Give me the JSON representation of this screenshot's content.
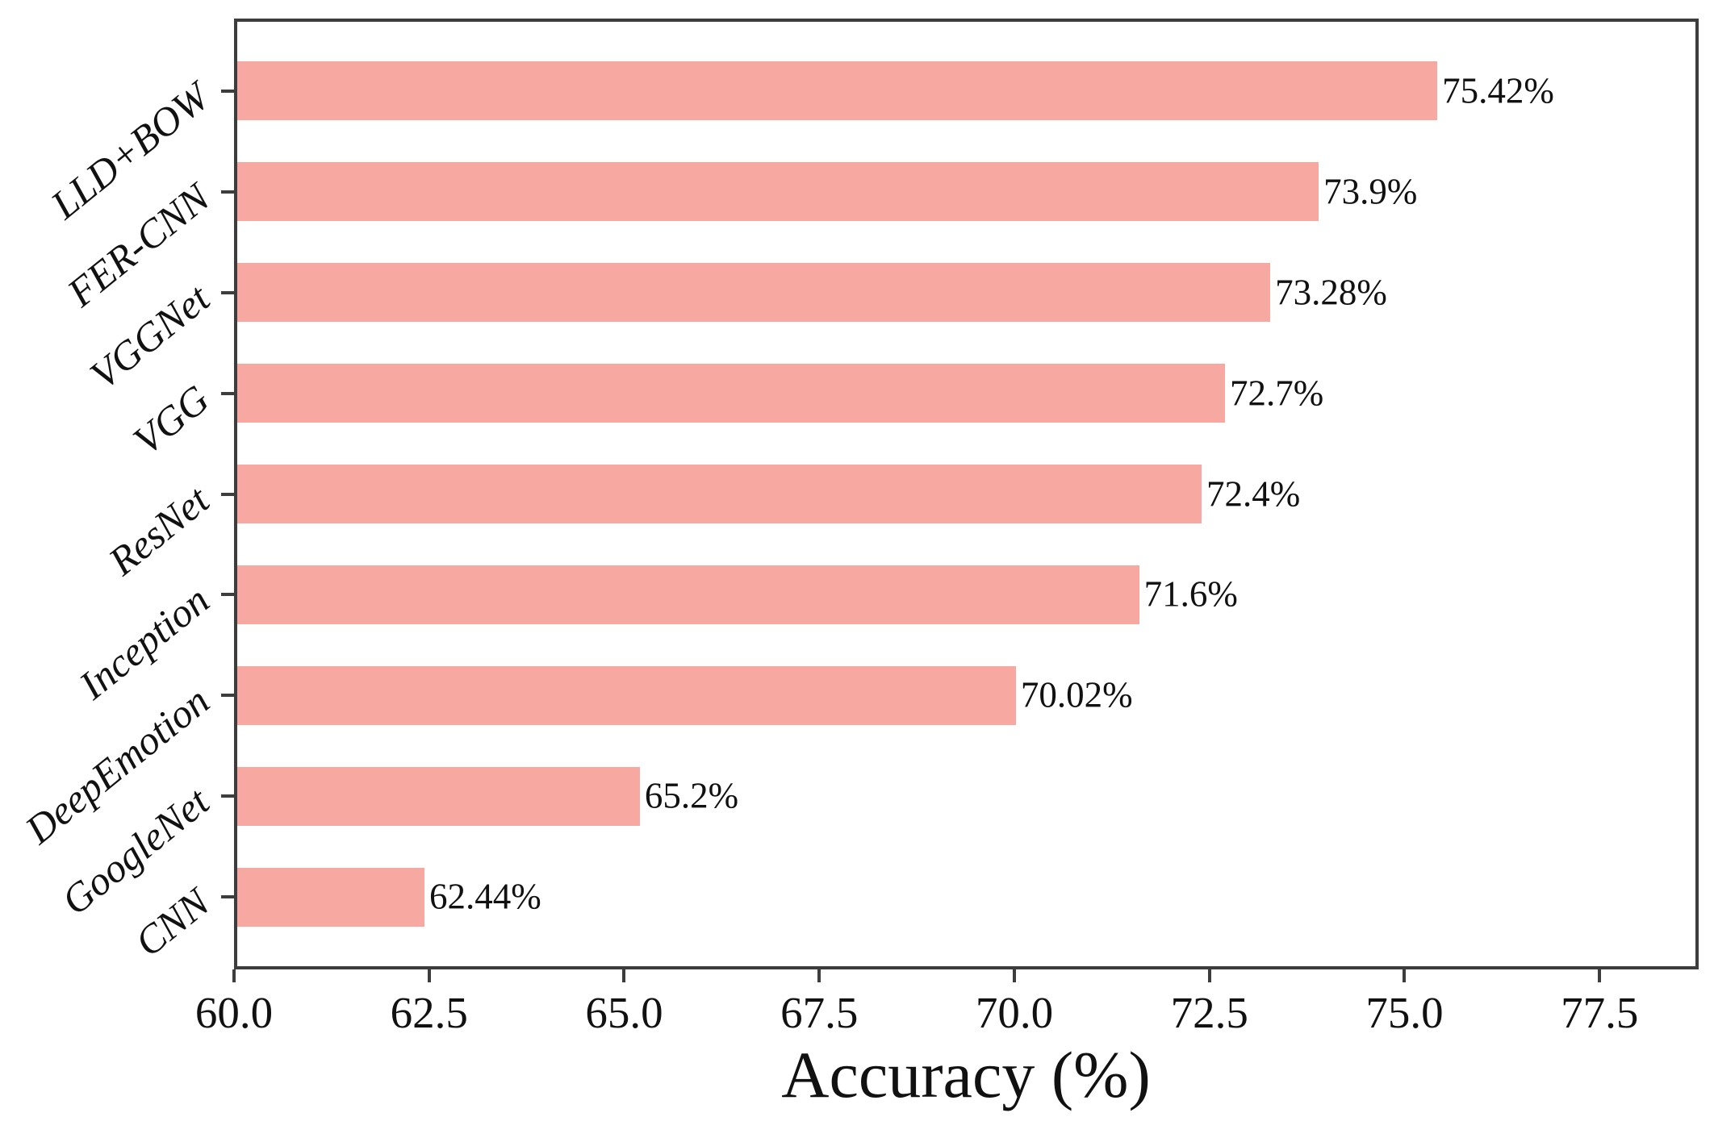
{
  "chart_data": {
    "type": "bar",
    "orientation": "horizontal",
    "title": "",
    "xlabel": "Accuracy (%)",
    "ylabel": "",
    "categories": [
      "LLD+BOW",
      "FER-CNN",
      "VGGNet",
      "VGG",
      "ResNet",
      "Inception",
      "DeepEmotion",
      "GoogleNet",
      "CNN"
    ],
    "values": [
      75.42,
      73.9,
      73.28,
      72.7,
      72.4,
      71.6,
      70.02,
      65.2,
      62.44
    ],
    "value_labels": [
      "75.42%",
      "73.9%",
      "73.28%",
      "72.7%",
      "72.4%",
      "71.6%",
      "70.02%",
      "65.2%",
      "62.44%"
    ],
    "xlim": [
      60.0,
      78.77
    ],
    "xticks": [
      60.0,
      62.5,
      65.0,
      67.5,
      70.0,
      72.5,
      75.0,
      77.5
    ],
    "xtick_labels": [
      "60.0",
      "62.5",
      "65.0",
      "67.5",
      "70.0",
      "72.5",
      "75.0",
      "77.5"
    ],
    "grid": false,
    "legend": false,
    "bar_color": "#F7A8A0",
    "axis_color": "#3d3d3d",
    "text_color": "#111111",
    "category_label_style": "italic, rotated"
  }
}
